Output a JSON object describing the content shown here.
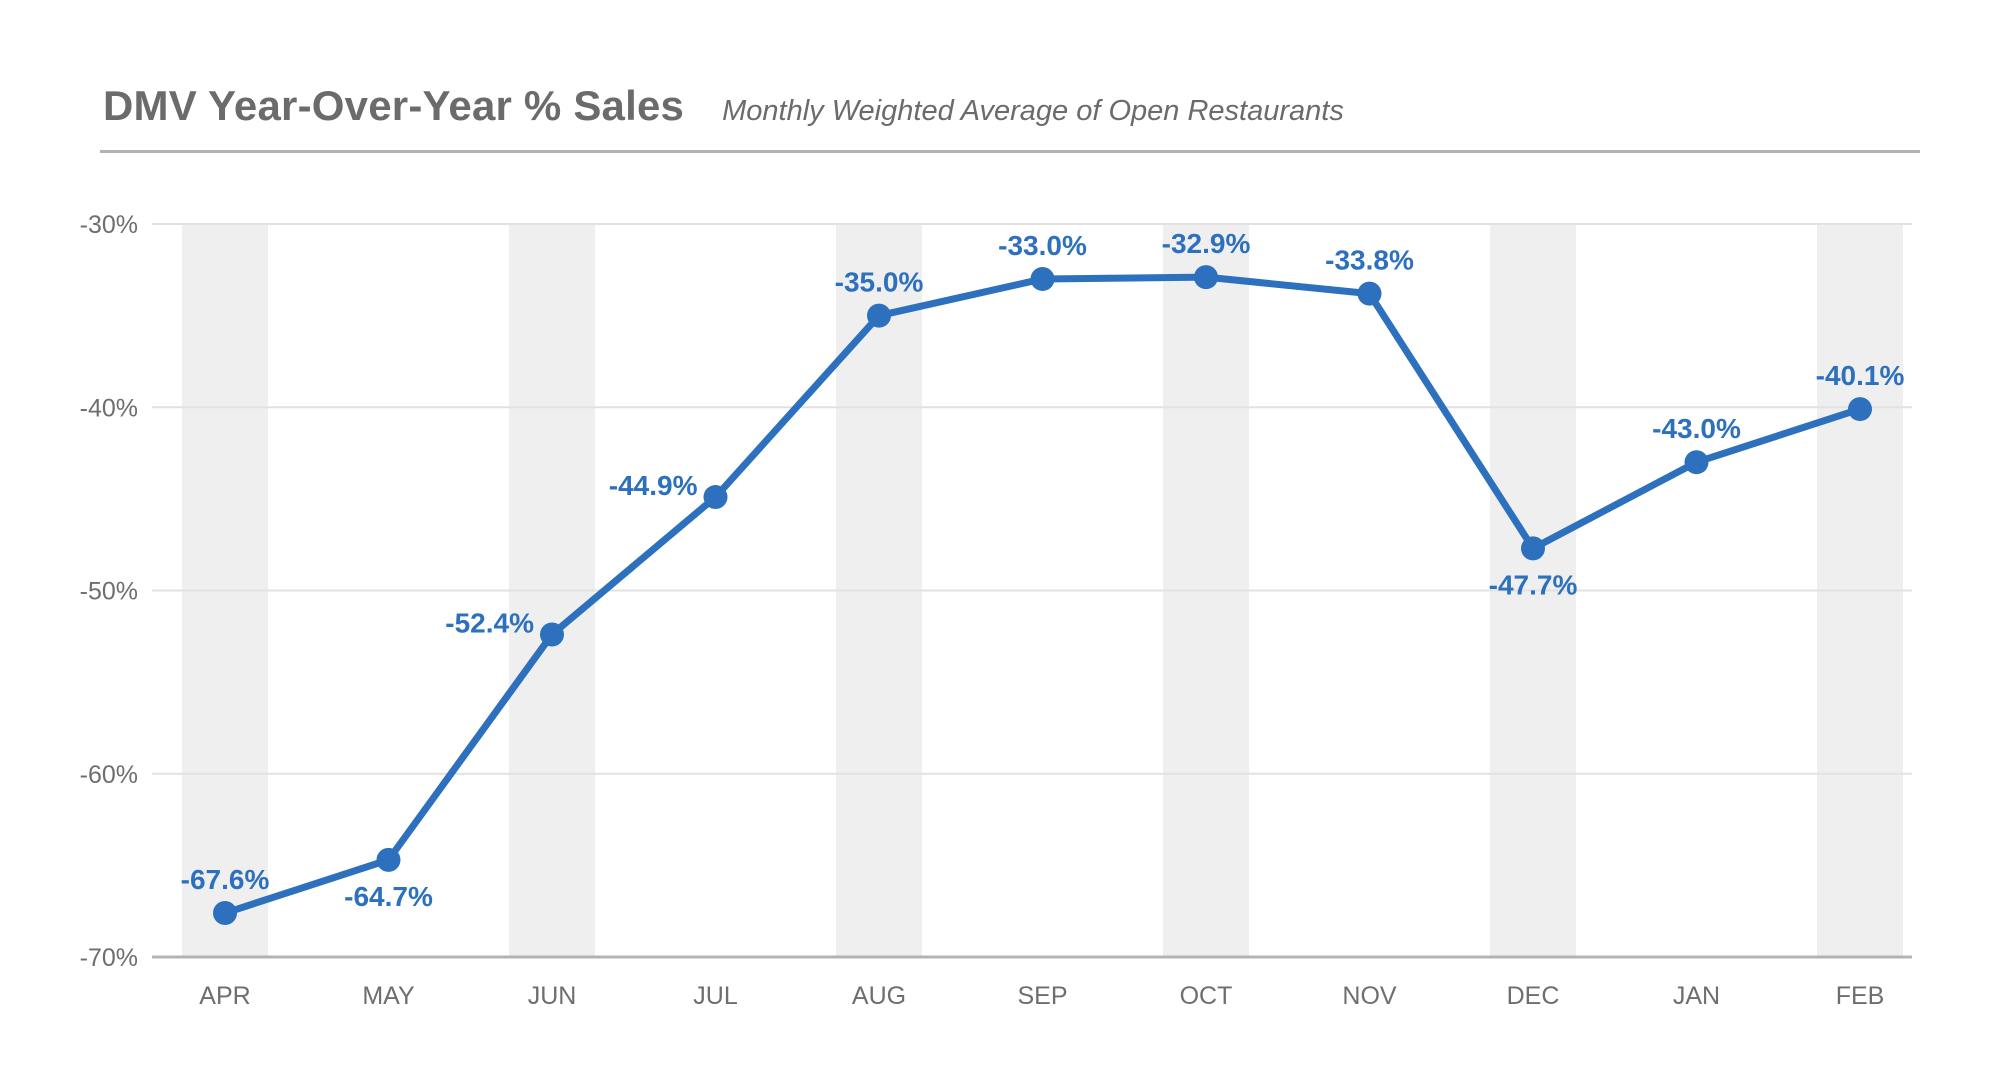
{
  "header": {
    "title": "DMV Year-Over-Year % Sales",
    "subtitle": "Monthly Weighted Average of Open Restaurants"
  },
  "colors": {
    "series": "#2c70be",
    "title": "#6b6b6b",
    "band": "#efefef",
    "grid": "#e2e2e2",
    "axis": "#b3b3b3",
    "tick_text": "#6e6e6e"
  },
  "chart_data": {
    "type": "line",
    "title": "DMV Year-Over-Year % Sales",
    "subtitle": "Monthly Weighted Average of Open Restaurants",
    "xlabel": "",
    "ylabel": "",
    "categories": [
      "APR",
      "MAY",
      "JUN",
      "JUL",
      "AUG",
      "SEP",
      "OCT",
      "NOV",
      "DEC",
      "JAN",
      "FEB"
    ],
    "series": [
      {
        "name": "Year-Over-Year % Sales",
        "values": [
          -67.6,
          -64.7,
          -52.4,
          -44.9,
          -35.0,
          -33.0,
          -32.9,
          -33.8,
          -47.7,
          -43.0,
          -40.1
        ],
        "labels": [
          "-67.6%",
          "-64.7%",
          "-52.4%",
          "-44.9%",
          "-35.0%",
          "-33.0%",
          "-32.9%",
          "-33.8%",
          "-47.7%",
          "-43.0%",
          "-40.1%"
        ],
        "label_positions": [
          "above",
          "below",
          "left",
          "left",
          "above",
          "above",
          "above",
          "above",
          "below",
          "above",
          "above"
        ]
      }
    ],
    "ylim": [
      -70,
      -30
    ],
    "yticks": [
      -30,
      -40,
      -50,
      -60,
      -70
    ],
    "ytick_labels": [
      "-30%",
      "-40%",
      "-50%",
      "-60%",
      "-70%"
    ],
    "grid": true,
    "alternating_bands": true
  }
}
